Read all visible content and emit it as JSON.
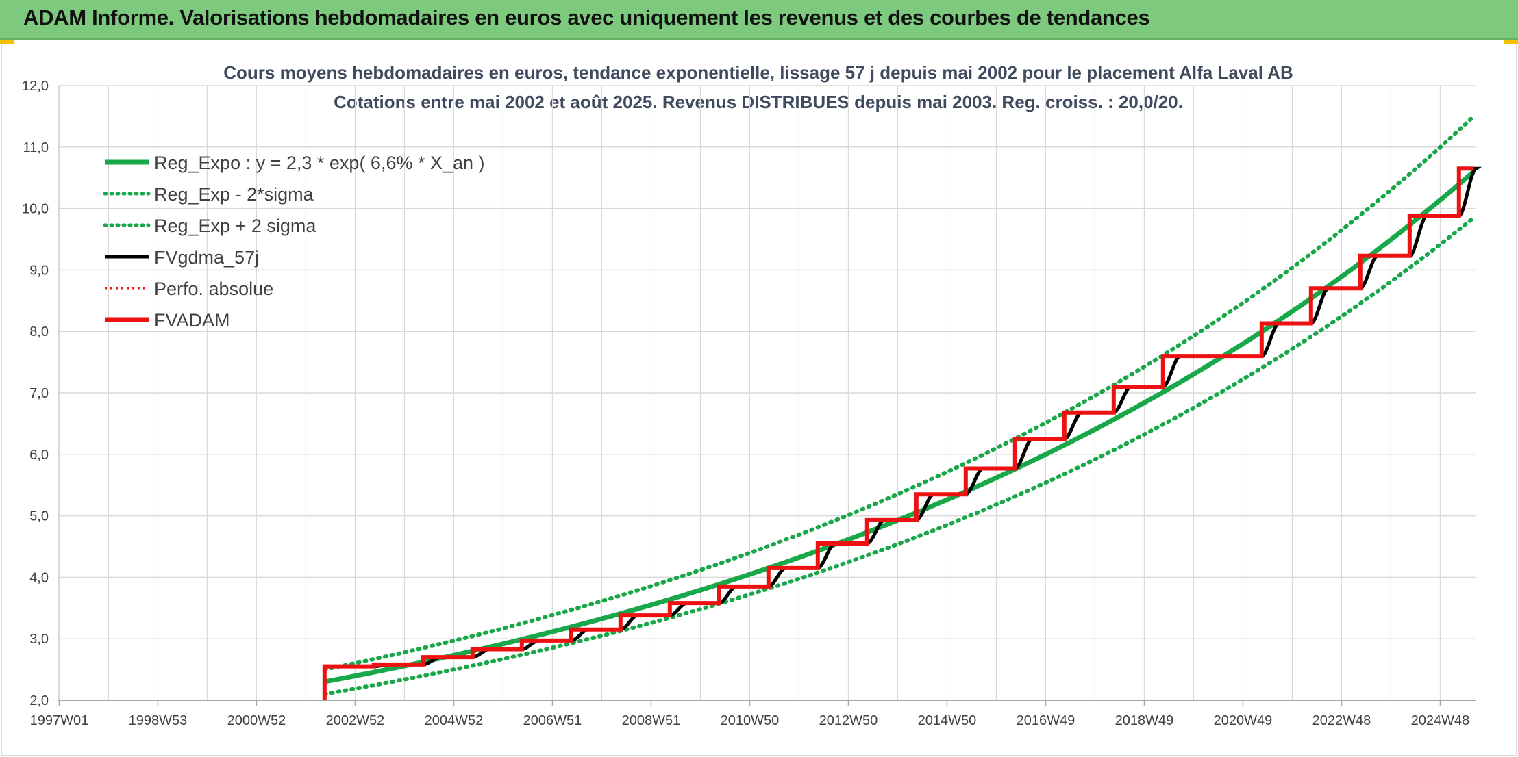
{
  "banner": {
    "title": "ADAM Informe. Valorisations hebdomadaires en euros avec uniquement les revenus et des courbes de tendances"
  },
  "colors": {
    "banner": "#7dc97d",
    "reg_expo": "#18a84a",
    "fvgdma": "#000000",
    "fvadam": "#ee1111",
    "perfo": "#ee1111",
    "grid": "#d9d9d9",
    "corner": "#f2c200"
  },
  "chart_data": {
    "type": "line",
    "title_lines": [
      "Cours moyens hebdomadaires en euros, tendance exponentielle, lissage 57 j depuis mai 2002 pour le placement Alfa Laval AB",
      "Cotations entre mai 2002 et août 2025. Revenus DISTRIBUES depuis mai 2003. Reg. croiss. : 20,0/20."
    ],
    "y_ticks": [
      "2,0",
      "3,0",
      "4,0",
      "5,0",
      "6,0",
      "7,0",
      "8,0",
      "9,0",
      "10,0",
      "11,0",
      "12,0"
    ],
    "ylim": [
      2,
      12
    ],
    "x_ticks": [
      "1997W01",
      "1998W53",
      "2000W52",
      "2002W52",
      "2004W52",
      "2006W51",
      "2008W51",
      "2010W50",
      "2012W50",
      "2014W50",
      "2016W49",
      "2018W49",
      "2020W49",
      "2022W48",
      "2024W48"
    ],
    "xlim": [
      1997.0,
      2025.75
    ],
    "grid": true,
    "legend_position": "top-left",
    "legend": [
      {
        "label": "Reg_Expo : y = 2,3 * exp( 6,6% *  X_an )",
        "color": "#18a84a",
        "style": "solid-thick"
      },
      {
        "label": "Reg_Exp - 2*sigma",
        "color": "#18a84a",
        "style": "dotted"
      },
      {
        "label": "Reg_Exp + 2 sigma",
        "color": "#18a84a",
        "style": "dotted"
      },
      {
        "label": "FVgdma_57j",
        "color": "#000000",
        "style": "solid"
      },
      {
        "label": "Perfo. absolue",
        "color": "#ee1111",
        "style": "dotted-thin"
      },
      {
        "label": "FVADAM",
        "color": "#ee1111",
        "style": "solid-thick"
      }
    ],
    "series": [
      {
        "name": "Reg_Expo : y = 2,3 * exp( 6,6% *  X_an )",
        "x": [
          2002.4,
          2005.0,
          2008.0,
          2011.0,
          2014.0,
          2017.0,
          2020.0,
          2023.0,
          2025.7
        ],
        "y": [
          2.3,
          2.7,
          3.3,
          4.0,
          4.9,
          6.0,
          7.3,
          8.9,
          10.6
        ]
      },
      {
        "name": "Reg_Exp - 2*sigma",
        "x": [
          2002.4,
          2005.0,
          2008.0,
          2011.0,
          2014.0,
          2017.0,
          2020.0,
          2023.0,
          2025.7
        ],
        "y": [
          2.1,
          2.5,
          3.1,
          3.7,
          4.5,
          5.5,
          6.8,
          8.3,
          9.85
        ]
      },
      {
        "name": "Reg_Exp + 2 sigma",
        "x": [
          2002.4,
          2005.0,
          2008.0,
          2011.0,
          2014.0,
          2017.0,
          2020.0,
          2023.0,
          2025.7
        ],
        "y": [
          2.5,
          2.95,
          3.55,
          4.3,
          5.3,
          6.5,
          7.95,
          9.65,
          11.5
        ]
      },
      {
        "name": "FVADAM",
        "steps": [
          {
            "x": 2002.4,
            "y": 2.55
          },
          {
            "x": 2003.4,
            "y": 2.58
          },
          {
            "x": 2004.4,
            "y": 2.7
          },
          {
            "x": 2005.4,
            "y": 2.83
          },
          {
            "x": 2006.4,
            "y": 2.97
          },
          {
            "x": 2007.4,
            "y": 3.15
          },
          {
            "x": 2008.4,
            "y": 3.38
          },
          {
            "x": 2009.4,
            "y": 3.58
          },
          {
            "x": 2010.4,
            "y": 3.85
          },
          {
            "x": 2011.4,
            "y": 4.15
          },
          {
            "x": 2012.4,
            "y": 4.55
          },
          {
            "x": 2013.4,
            "y": 4.93
          },
          {
            "x": 2014.4,
            "y": 5.35
          },
          {
            "x": 2015.4,
            "y": 5.77
          },
          {
            "x": 2016.4,
            "y": 6.25
          },
          {
            "x": 2017.4,
            "y": 6.68
          },
          {
            "x": 2018.4,
            "y": 7.1
          },
          {
            "x": 2019.4,
            "y": 7.6
          },
          {
            "x": 2021.4,
            "y": 8.13
          },
          {
            "x": 2022.4,
            "y": 8.7
          },
          {
            "x": 2023.4,
            "y": 9.23
          },
          {
            "x": 2024.4,
            "y": 9.88
          },
          {
            "x": 2025.4,
            "y": 10.65
          }
        ],
        "start_y": 2.0,
        "end_x": 2025.7
      }
    ]
  }
}
